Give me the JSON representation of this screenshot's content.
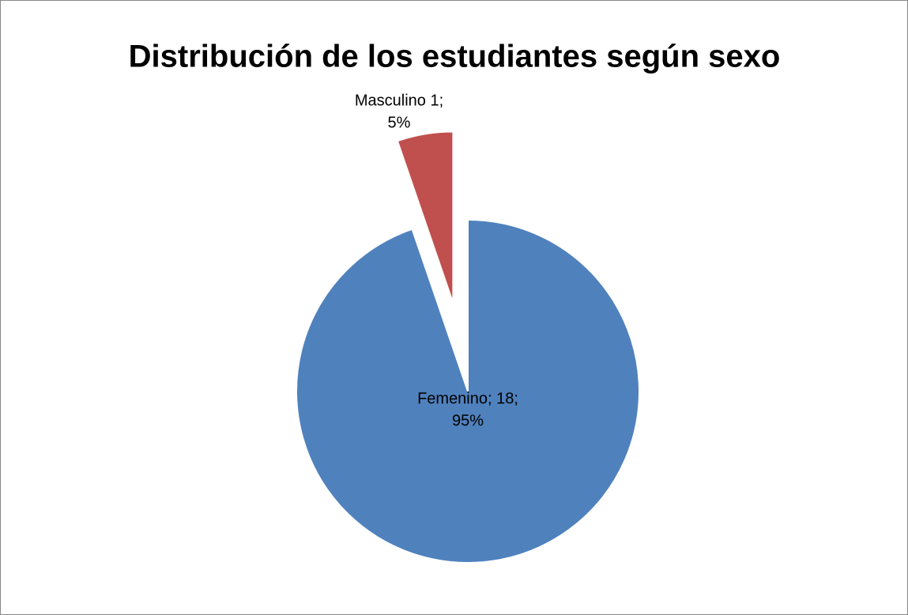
{
  "chart_data": {
    "type": "pie",
    "title": "Distribución de los estudiantes según sexo",
    "categories": [
      "Femenino",
      "Masculino"
    ],
    "values": [
      18,
      1
    ],
    "value_labels": [
      [
        "Femenino; 18;",
        "95%"
      ],
      [
        "Masculino 1;",
        "5%"
      ]
    ],
    "colors": [
      "#4f81bd",
      "#c0504d"
    ]
  }
}
